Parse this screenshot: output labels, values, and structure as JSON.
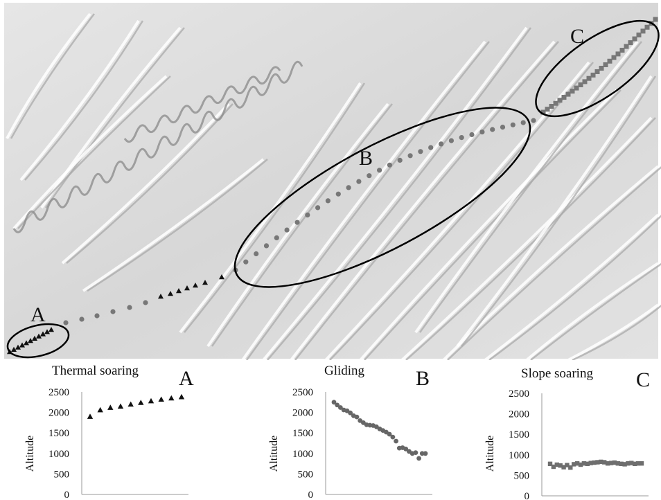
{
  "map": {
    "labels": {
      "a": "A",
      "b": "B",
      "c": "C"
    },
    "colors": {
      "terrain": "#d9d9d9",
      "marker_triangle": "#111111",
      "marker_circle": "#777777",
      "marker_square": "#777777",
      "ellipse": "#000000"
    }
  },
  "chart_data": [
    {
      "type": "scatter",
      "title": "Thermal soaring",
      "panel_letter": "A",
      "xlabel": "",
      "ylabel": "Altitude",
      "ylim": [
        0,
        2500
      ],
      "yticks": [
        "0",
        "500",
        "1000",
        "1500",
        "2000",
        "2500"
      ],
      "marker": "triangle",
      "color": "#111111",
      "x": [
        1,
        2,
        3,
        4,
        5,
        6,
        7,
        8,
        9,
        10
      ],
      "values": [
        1900,
        2060,
        2120,
        2150,
        2200,
        2240,
        2280,
        2320,
        2350,
        2380
      ]
    },
    {
      "type": "scatter",
      "title": "Gliding",
      "panel_letter": "B",
      "xlabel": "",
      "ylabel": "Altitude",
      "ylim": [
        0,
        2500
      ],
      "yticks": [
        "0",
        "500",
        "1000",
        "1500",
        "2000",
        "2500"
      ],
      "marker": "circle",
      "color": "#666666",
      "x": [
        1,
        2,
        3,
        4,
        5,
        6,
        7,
        8,
        9,
        10,
        11,
        12,
        13,
        14,
        15,
        16,
        17,
        18,
        19,
        20,
        21,
        22,
        23,
        24,
        25,
        26,
        27,
        28,
        29
      ],
      "values": [
        2250,
        2180,
        2120,
        2060,
        2040,
        1990,
        1920,
        1890,
        1800,
        1750,
        1700,
        1690,
        1680,
        1650,
        1600,
        1560,
        1520,
        1470,
        1400,
        1300,
        1130,
        1140,
        1110,
        1050,
        1000,
        1020,
        880,
        1000,
        1000
      ]
    },
    {
      "type": "scatter",
      "title": "Slope soaring",
      "panel_letter": "C",
      "xlabel": "",
      "ylabel": "Altitude",
      "ylim": [
        0,
        2500
      ],
      "yticks": [
        "0",
        "500",
        "1000",
        "1500",
        "2000",
        "2500"
      ],
      "marker": "square",
      "color": "#6e6e6e",
      "x": [
        1,
        2,
        3,
        4,
        5,
        6,
        7,
        8,
        9,
        10,
        11,
        12,
        13,
        14,
        15,
        16,
        17,
        18,
        19,
        20,
        21,
        22,
        23,
        24,
        25,
        26,
        27,
        28
      ],
      "values": [
        780,
        710,
        760,
        740,
        700,
        750,
        690,
        770,
        790,
        760,
        790,
        780,
        800,
        810,
        820,
        830,
        820,
        790,
        800,
        810,
        790,
        780,
        770,
        790,
        800,
        780,
        790,
        790
      ]
    }
  ]
}
